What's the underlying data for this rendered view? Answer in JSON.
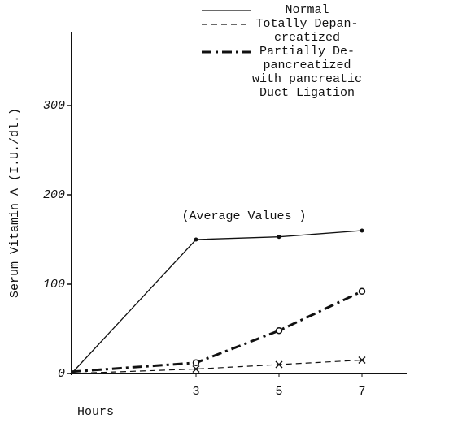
{
  "chart_data": {
    "type": "line",
    "ylabel": "Serum Vitamin A (I.U./dl.)",
    "xlabel": "Hours",
    "annotation": "(Average Values )",
    "x": [
      0,
      3,
      5,
      7
    ],
    "xlim": [
      0,
      8
    ],
    "xticks": [
      3,
      5,
      7
    ],
    "ylim": [
      0,
      370
    ],
    "yticks": [
      0,
      100,
      200,
      300
    ],
    "grid": false,
    "legend": "upper right",
    "series": [
      {
        "name": "Normal",
        "color": "#111111",
        "style": "solid",
        "marker": "dot",
        "values": [
          0,
          150,
          153,
          160
        ]
      },
      {
        "name": "Totally Depan-\ncreatized",
        "color": "#111111",
        "style": "dashed",
        "marker": "x",
        "values": [
          0,
          5,
          10,
          15
        ]
      },
      {
        "name": "Partially De-\npancreatized\nwith pancreatic\nDuct Ligation",
        "color": "#111111",
        "style": "dashdot",
        "marker": "circle",
        "values": [
          2,
          12,
          48,
          92
        ]
      }
    ]
  }
}
